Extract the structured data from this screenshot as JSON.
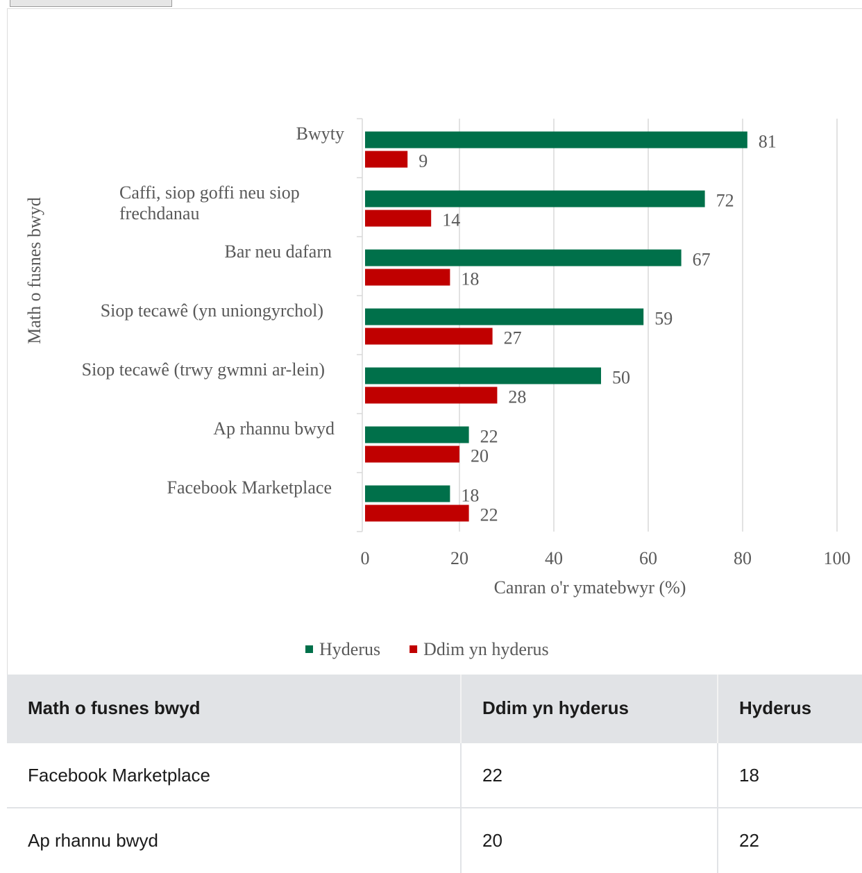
{
  "chart_data": {
    "type": "bar",
    "orientation": "horizontal",
    "categories": [
      [
        "Bwyty"
      ],
      [
        "Caffi, siop goffi neu siop",
        "frechdanau"
      ],
      [
        "Bar neu dafarn"
      ],
      [
        "Siop tecawê (yn uniongyrchol)"
      ],
      [
        "Siop tecawê (trwy gwmni ar-lein)"
      ],
      [
        "Ap rhannu bwyd"
      ],
      [
        "Facebook Marketplace"
      ]
    ],
    "series": [
      {
        "name": "Hyderus",
        "color": "#00704a",
        "values": [
          81,
          72,
          67,
          59,
          50,
          22,
          18
        ]
      },
      {
        "name": "Ddim yn hyderus",
        "color": "#c00000",
        "values": [
          9,
          14,
          18,
          27,
          28,
          20,
          22
        ]
      }
    ],
    "xlabel": "Canran o'r ymatebwyr (%)",
    "ylabel": "Math o fusnes bwyd",
    "xlim": [
      0,
      100
    ],
    "xticks": [
      "0",
      "20",
      "40",
      "60",
      "80",
      "100"
    ],
    "grid": true,
    "legend": "bottom"
  },
  "table": {
    "headers": [
      "Math o fusnes bwyd",
      "Ddim yn hyderus",
      "Hyderus"
    ],
    "rows": [
      [
        "Facebook Marketplace",
        "22",
        "18"
      ],
      [
        "Ap rhannu bwyd",
        "20",
        "22"
      ]
    ]
  }
}
